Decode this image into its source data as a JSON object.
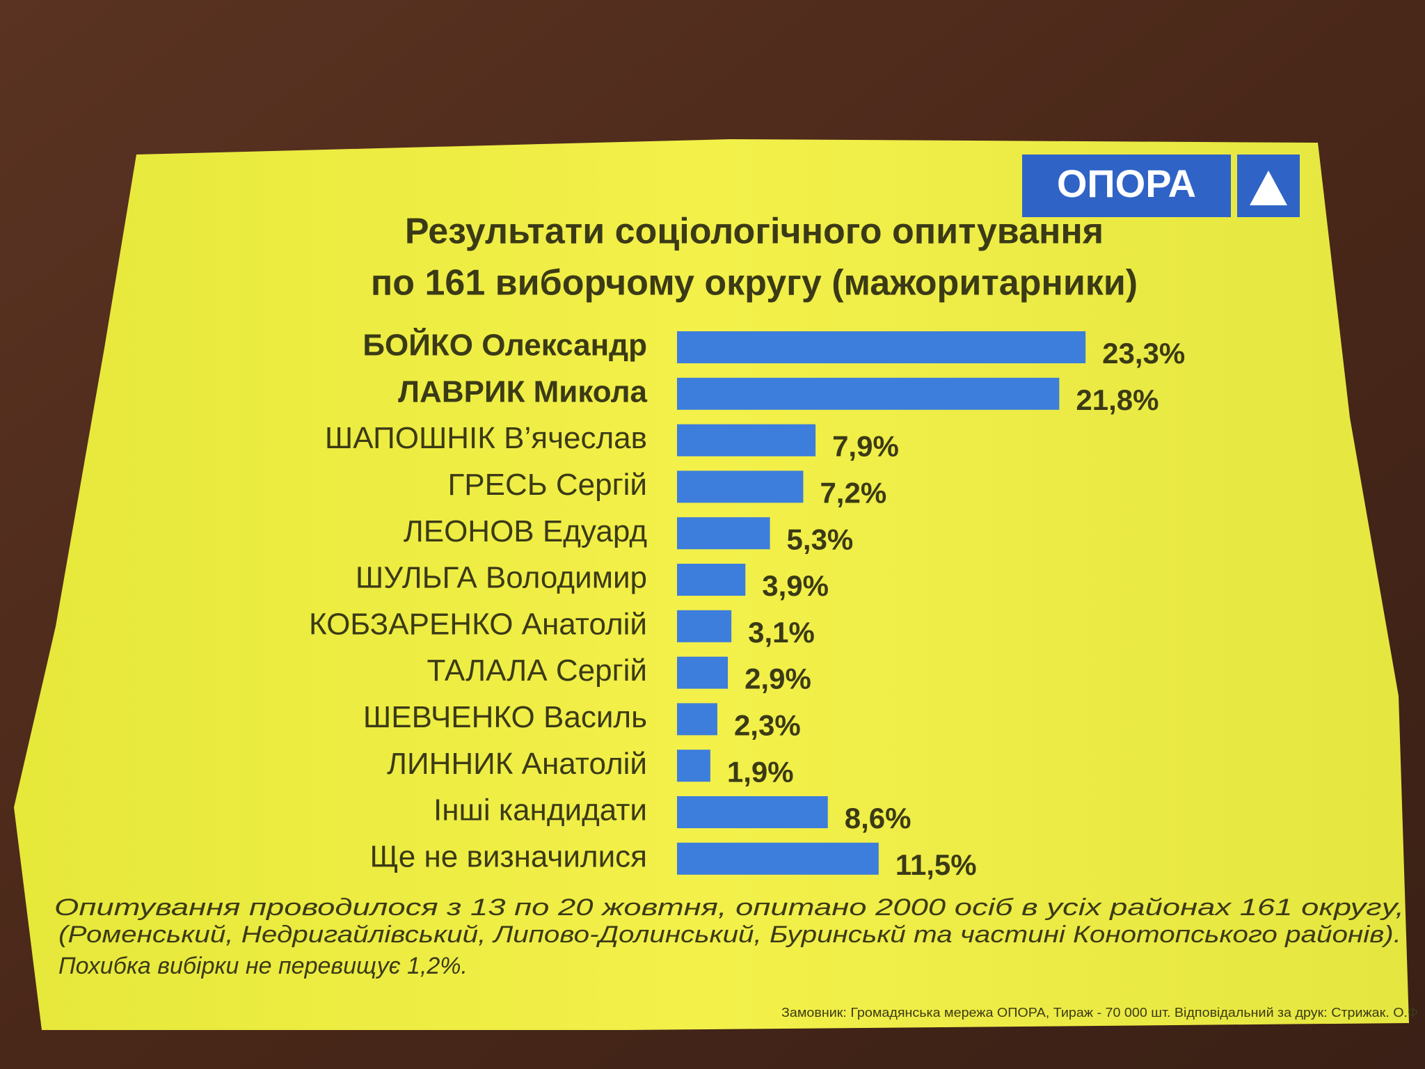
{
  "logo": {
    "text": "ОПОРА"
  },
  "chart_data": {
    "type": "bar",
    "title": [
      "Результати соціологічного опитування",
      "по 161 виборчому округу (мажоритарники)"
    ],
    "categories": [
      "БОЙКО Олександр",
      "ЛАВРИК Микола",
      "ШАПОШНІК В’ячеслав",
      "ГРЕСЬ Сергій",
      "ЛЕОНОВ Едуард",
      "ШУЛЬГА Володимир",
      "КОБЗАРЕНКО Анатолій",
      "ТАЛАЛА Сергій",
      "ШЕВЧЕНКО Василь",
      "ЛИННИК Анатолій",
      "Інші кандидати",
      "Ще не визначилися"
    ],
    "values": [
      23.3,
      21.8,
      7.9,
      7.2,
      5.3,
      3.9,
      3.1,
      2.9,
      2.3,
      1.9,
      8.6,
      11.5
    ],
    "value_labels": [
      "23,3%",
      "21,8%",
      "7,9%",
      "7,2%",
      "5,3%",
      "3,9%",
      "3,1%",
      "2,9%",
      "2,3%",
      "1,9%",
      "8,6%",
      "11,5%"
    ],
    "bold": [
      true,
      true,
      false,
      false,
      false,
      false,
      false,
      false,
      false,
      false,
      false,
      false
    ],
    "color": "#3d7ddb"
  },
  "footer": {
    "lines": [
      "Опитування проводилося з 13 по 20 жовтня, опитано 2000 осіб в усіх районах 161 округу,",
      "(Роменський, Недригайлівський, Липово-Долинський, Буринськй та частині Конотопського районів).",
      "Похибка вибірки не перевищує 1,2%."
    ],
    "imprint": "Замовник: Громадянська мережа ОПОРА, Тираж - 70 000 шт. Відповідальний за друк: Стрижак. О.Ф"
  }
}
